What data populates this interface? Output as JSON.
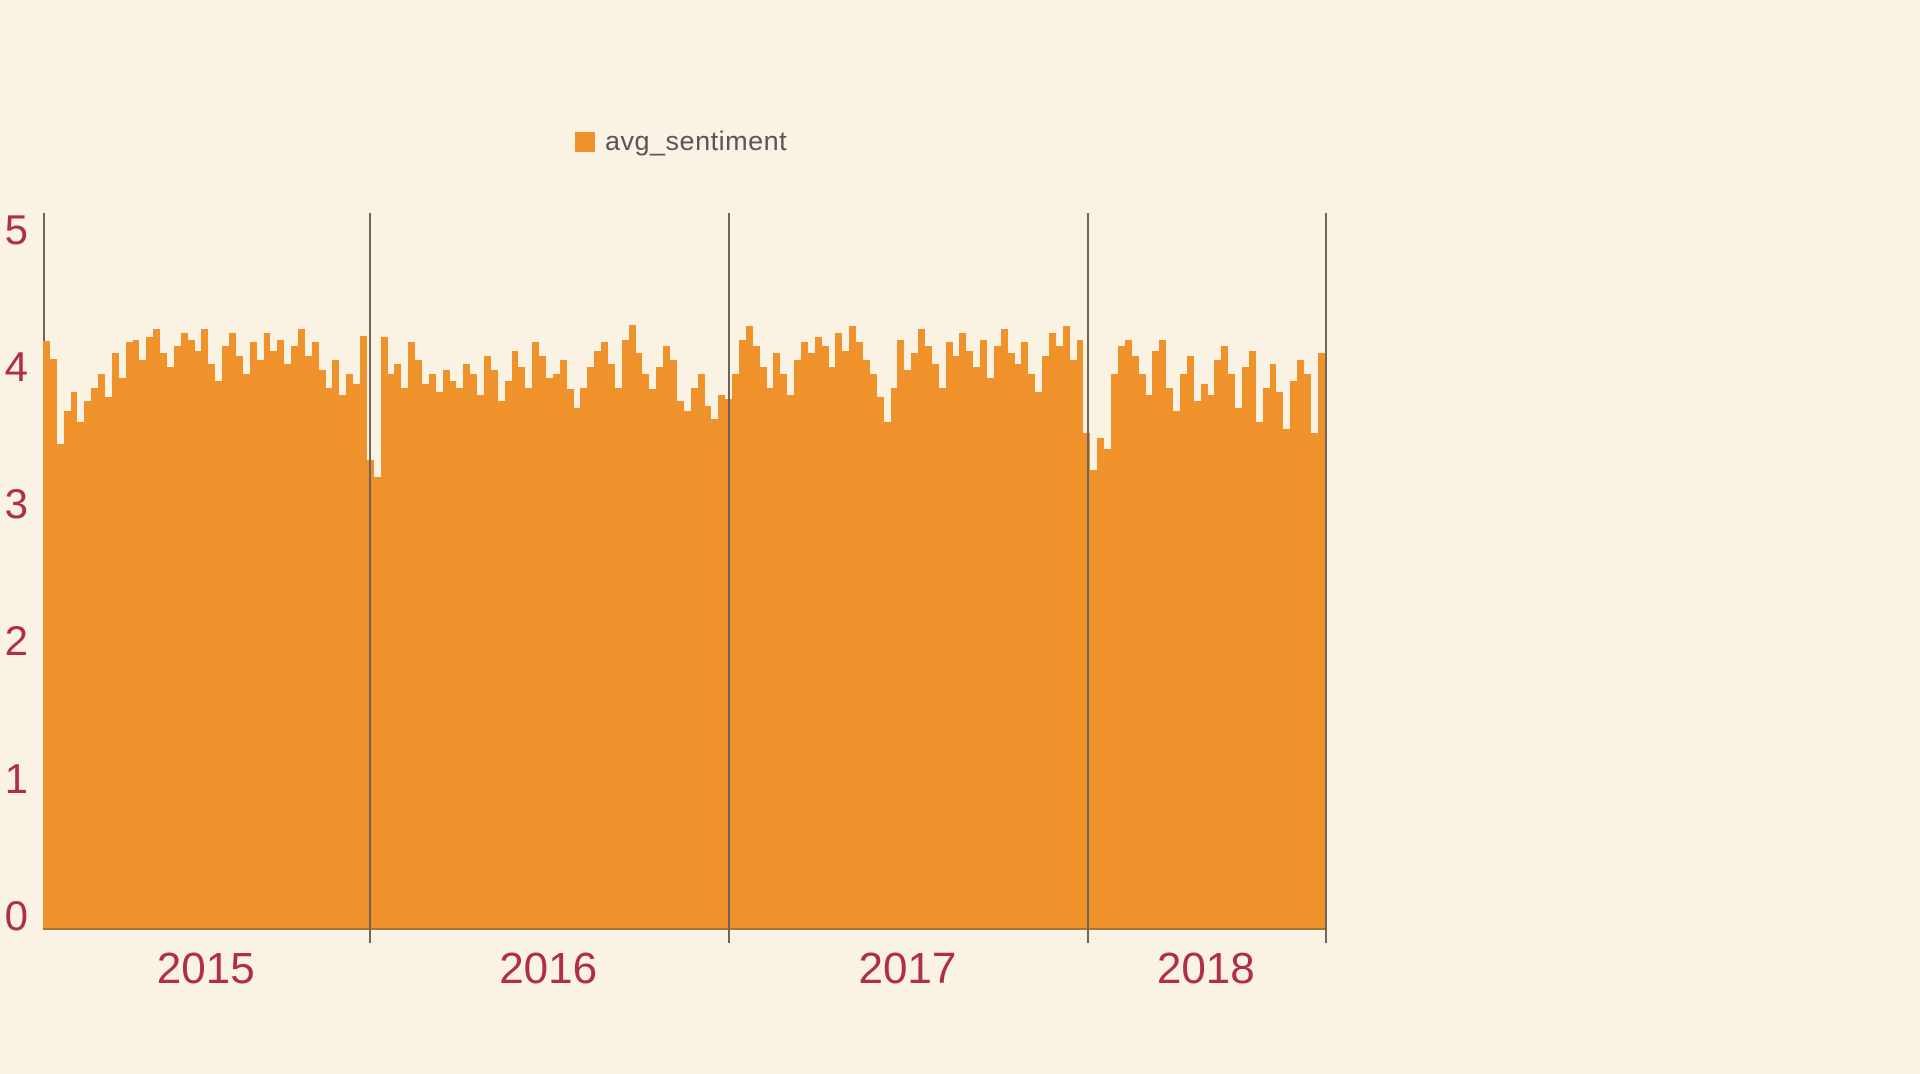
{
  "page": {
    "background_color": "#FAF3E4"
  },
  "legend": {
    "label": "avg_sentiment",
    "swatch_color": "#F0922B",
    "text_color": "#56565B"
  },
  "axes": {
    "y_tick_labels": [
      "5",
      "4",
      "3",
      "2",
      "1",
      "0"
    ],
    "y_tick_values": [
      5,
      4,
      3,
      2,
      1,
      0
    ],
    "x_tick_labels": [
      "2015",
      "2016",
      "2017",
      "2018"
    ],
    "tick_label_color": "#B02F46",
    "gridline_color": "#6B655C"
  },
  "chart_data": {
    "type": "bar",
    "title": "",
    "xlabel": "",
    "ylabel": "",
    "legend_position": "top",
    "series_name": "avg_sentiment",
    "bar_color": "#F0922B",
    "ylim": [
      0,
      5
    ],
    "x_axis_note": "weekly bins grouped by year; vertical gridlines at year boundaries",
    "categories": [
      "2015",
      "2016",
      "2017",
      "2018"
    ],
    "series": [
      {
        "name": "2015",
        "values": [
          4.29,
          4.16,
          3.54,
          3.78,
          3.92,
          3.7,
          3.85,
          3.95,
          4.05,
          3.88,
          4.2,
          4.02,
          4.28,
          4.3,
          4.15,
          4.32,
          4.38,
          4.2,
          4.1,
          4.25,
          4.35,
          4.3,
          4.22,
          4.38,
          4.12,
          4.0,
          4.25,
          4.35,
          4.18,
          4.05,
          4.28,
          4.15,
          4.35,
          4.22,
          4.3,
          4.12,
          4.25,
          4.38,
          4.18,
          4.28,
          4.08,
          3.95,
          4.15,
          3.9,
          4.05,
          3.98,
          4.33
        ]
      },
      {
        "name": "2016",
        "values": [
          3.42,
          3.3,
          4.32,
          4.05,
          4.12,
          3.95,
          4.28,
          4.15,
          3.98,
          4.05,
          3.92,
          4.08,
          4.0,
          3.95,
          4.12,
          4.05,
          3.9,
          4.18,
          4.08,
          3.85,
          4.0,
          4.22,
          4.1,
          3.95,
          4.28,
          4.18,
          4.02,
          4.05,
          4.15,
          3.94,
          3.8,
          3.95,
          4.1,
          4.22,
          4.28,
          4.12,
          3.95,
          4.3,
          4.41,
          4.2,
          4.05,
          3.94,
          4.1,
          4.25,
          4.15,
          3.85,
          3.78,
          3.95,
          4.05,
          3.82,
          3.72,
          3.9
        ]
      },
      {
        "name": "2017",
        "values": [
          3.87,
          4.05,
          4.3,
          4.4,
          4.25,
          4.1,
          3.95,
          4.2,
          4.05,
          3.9,
          4.15,
          4.28,
          4.2,
          4.32,
          4.25,
          4.1,
          4.35,
          4.22,
          4.4,
          4.28,
          4.15,
          4.05,
          3.88,
          3.7,
          3.95,
          4.3,
          4.08,
          4.2,
          4.38,
          4.25,
          4.12,
          3.95,
          4.28,
          4.18,
          4.35,
          4.22,
          4.1,
          4.3,
          4.02,
          4.25,
          4.38,
          4.2,
          4.12,
          4.28,
          4.05,
          3.92,
          4.18,
          4.35,
          4.25,
          4.4,
          4.15,
          4.3
        ]
      },
      {
        "name": "2018",
        "values": [
          3.62,
          3.35,
          3.58,
          3.5,
          4.05,
          4.25,
          4.3,
          4.18,
          4.05,
          3.9,
          4.22,
          4.3,
          3.95,
          3.78,
          4.05,
          4.18,
          3.85,
          3.98,
          3.9,
          4.15,
          4.25,
          4.05,
          3.8,
          4.1,
          4.22,
          3.7,
          3.95,
          4.12,
          3.92,
          3.65,
          4.0,
          4.15,
          4.05,
          3.62,
          4.2
        ]
      }
    ]
  }
}
